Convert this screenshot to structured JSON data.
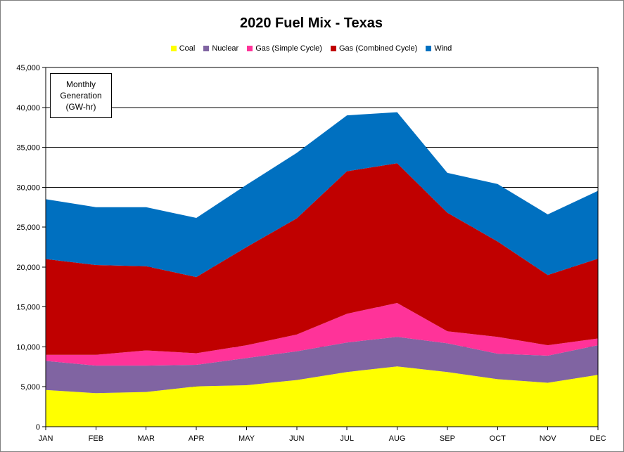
{
  "chart_data": {
    "type": "area",
    "stacked": true,
    "title": "2020 Fuel Mix - Texas",
    "annotation": "Monthly Generation (GW-hr)",
    "legend_position": "top",
    "grid": "horizontal",
    "categories": [
      "JAN",
      "FEB",
      "MAR",
      "APR",
      "MAY",
      "JUN",
      "JUL",
      "AUG",
      "SEP",
      "OCT",
      "NOV",
      "DEC"
    ],
    "ylim": [
      0,
      45000
    ],
    "yticks": [
      0,
      5000,
      10000,
      15000,
      20000,
      25000,
      30000,
      35000,
      40000,
      45000
    ],
    "ytick_labels": [
      "0",
      "5,000",
      "10,000",
      "15,000",
      "20,000",
      "25,000",
      "30,000",
      "35,000",
      "40,000",
      "45,000"
    ],
    "series": [
      {
        "name": "Coal",
        "color": "#ffff00",
        "values": [
          4600,
          4200,
          4350,
          5050,
          5200,
          5850,
          6850,
          7550,
          6850,
          5950,
          5500,
          6500
        ]
      },
      {
        "name": "Nuclear",
        "color": "#8064a2",
        "values": [
          3650,
          3450,
          3300,
          2700,
          3400,
          3600,
          3700,
          3700,
          3600,
          3200,
          3400,
          3700
        ]
      },
      {
        "name": "Gas (Simple Cycle)",
        "color": "#ff3399",
        "values": [
          750,
          1350,
          1900,
          1450,
          1600,
          2100,
          3600,
          4250,
          1500,
          2100,
          1300,
          850
        ]
      },
      {
        "name": "Gas (Combined Cycle)",
        "color": "#c00000",
        "values": [
          12000,
          11250,
          10550,
          9550,
          12300,
          14550,
          17850,
          17500,
          14850,
          11950,
          8800,
          10000
        ]
      },
      {
        "name": "Wind",
        "color": "#0070c0",
        "values": [
          7500,
          7250,
          7400,
          7400,
          7800,
          8200,
          7000,
          6400,
          5000,
          7200,
          7600,
          8500
        ]
      }
    ]
  }
}
